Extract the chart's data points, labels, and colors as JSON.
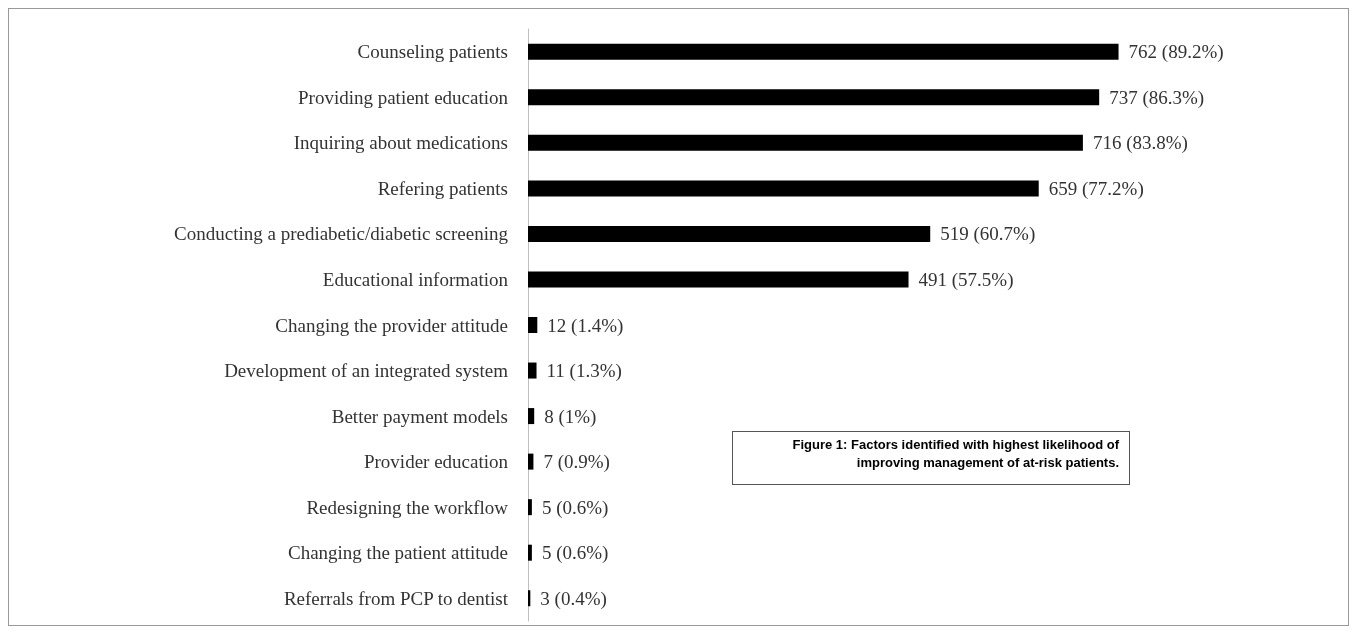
{
  "chart_data": {
    "type": "bar",
    "orientation": "horizontal",
    "categories": [
      "Counseling patients",
      "Providing patient education",
      "Inquiring about medications",
      "Refering patients",
      "Conducting a prediabetic/diabetic screening",
      "Educational information",
      "Changing the provider attitude",
      "Development of an integrated system",
      "Better payment models",
      "Provider education",
      "Redesigning the workflow",
      "Changing the patient attitude",
      "Referrals from PCP to dentist"
    ],
    "values": [
      762,
      737,
      716,
      659,
      519,
      491,
      12,
      11,
      8,
      7,
      5,
      5,
      3
    ],
    "value_labels": [
      "762 (89.2%)",
      "737 (86.3%)",
      "716 (83.8%)",
      "659 (77.2%)",
      "519 (60.7%)",
      "491 (57.5%)",
      "12 (1.4%)",
      "11 (1.3%)",
      "8 (1%)",
      "7 (0.9%)",
      "5 (0.6%)",
      "5 (0.6%)",
      "3 (0.4%)"
    ],
    "color": "#000000",
    "annotations": [
      "Figure 1: Factors identified with highest likelihood of improving management of at-risk patients."
    ]
  }
}
